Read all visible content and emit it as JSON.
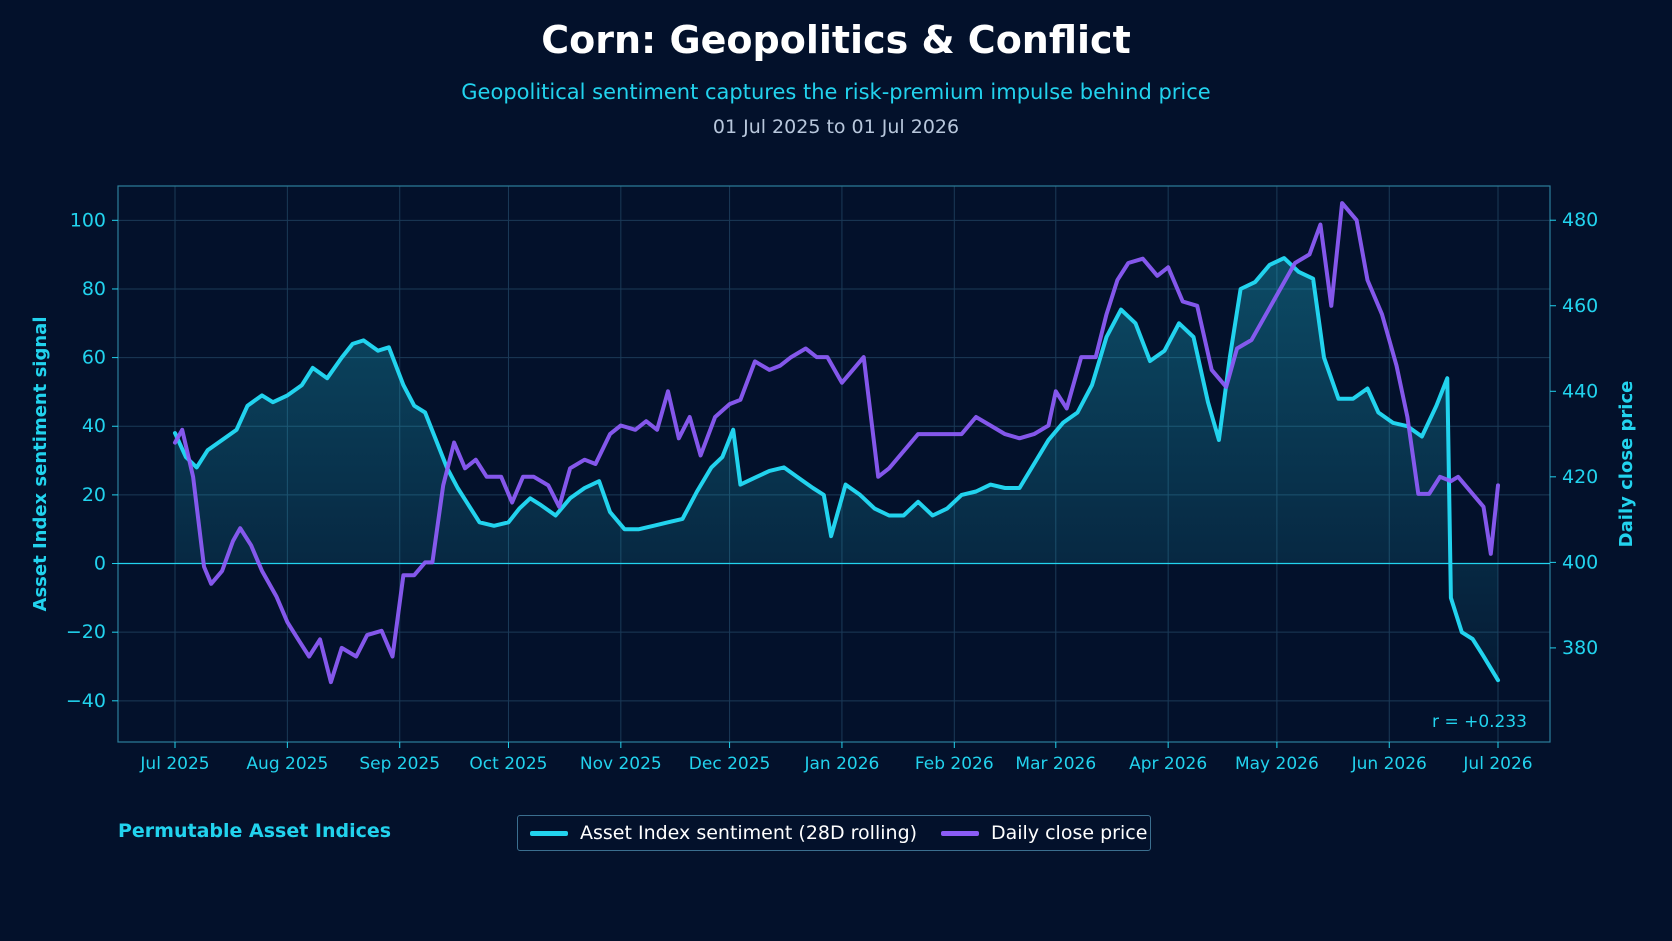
{
  "title": "Corn: Geopolitics & Conflict",
  "subtitle": "Geopolitical sentiment captures the risk-premium impulse behind price",
  "date_range": "01 Jul 2025 to 01 Jul 2026",
  "brand": "Permutable Asset Indices",
  "colors": {
    "background": "#03112b",
    "sentiment": "#22d3ee",
    "price": "#8b5cf6",
    "grid": "#1b3a57",
    "axis": "#22d3ee"
  },
  "chart_data": {
    "type": "line",
    "x_tick_labels": [
      "Jul 2025",
      "Aug 2025",
      "Sep 2025",
      "Oct 2025",
      "Nov 2025",
      "Dec 2025",
      "Jan 2026",
      "Feb 2026",
      "Mar 2026",
      "Apr 2026",
      "May 2026",
      "Jun 2026",
      "Jul 2026"
    ],
    "y_left": {
      "label": "Asset Index sentiment signal",
      "range": [
        -52,
        110
      ],
      "ticks": [
        -40,
        -20,
        0,
        20,
        40,
        60,
        80,
        100
      ],
      "tick_labels": [
        "−40",
        "−20",
        "0",
        "20",
        "40",
        "60",
        "80",
        "100"
      ]
    },
    "y_right": {
      "label": "Daily close price",
      "range": [
        358,
        488
      ],
      "ticks": [
        380,
        400,
        420,
        440,
        460,
        480
      ],
      "tick_labels": [
        "380",
        "400",
        "420",
        "440",
        "460",
        "480"
      ]
    },
    "grid": true,
    "legend_position": "bottom-center",
    "annotation": "r = +0.233",
    "series": [
      {
        "name": "Asset Index sentiment (28D rolling)",
        "axis": "left",
        "color": "#22d3ee",
        "points": [
          [
            "2025-07-01",
            38
          ],
          [
            "2025-07-04",
            31
          ],
          [
            "2025-07-07",
            28
          ],
          [
            "2025-07-10",
            33
          ],
          [
            "2025-07-14",
            36
          ],
          [
            "2025-07-18",
            39
          ],
          [
            "2025-07-21",
            46
          ],
          [
            "2025-07-25",
            49
          ],
          [
            "2025-07-28",
            47
          ],
          [
            "2025-08-01",
            49
          ],
          [
            "2025-08-05",
            52
          ],
          [
            "2025-08-08",
            57
          ],
          [
            "2025-08-12",
            54
          ],
          [
            "2025-08-16",
            60
          ],
          [
            "2025-08-19",
            64
          ],
          [
            "2025-08-22",
            65
          ],
          [
            "2025-08-26",
            62
          ],
          [
            "2025-08-29",
            63
          ],
          [
            "2025-09-02",
            52
          ],
          [
            "2025-09-05",
            46
          ],
          [
            "2025-09-08",
            44
          ],
          [
            "2025-09-11",
            36
          ],
          [
            "2025-09-14",
            28
          ],
          [
            "2025-09-17",
            22
          ],
          [
            "2025-09-20",
            17
          ],
          [
            "2025-09-23",
            12
          ],
          [
            "2025-09-27",
            11
          ],
          [
            "2025-10-01",
            12
          ],
          [
            "2025-10-04",
            16
          ],
          [
            "2025-10-07",
            19
          ],
          [
            "2025-10-10",
            17
          ],
          [
            "2025-10-14",
            14
          ],
          [
            "2025-10-18",
            19
          ],
          [
            "2025-10-22",
            22
          ],
          [
            "2025-10-26",
            24
          ],
          [
            "2025-10-29",
            15
          ],
          [
            "2025-11-02",
            10
          ],
          [
            "2025-11-06",
            10
          ],
          [
            "2025-11-10",
            11
          ],
          [
            "2025-11-14",
            12
          ],
          [
            "2025-11-18",
            13
          ],
          [
            "2025-11-22",
            21
          ],
          [
            "2025-11-26",
            28
          ],
          [
            "2025-11-29",
            31
          ],
          [
            "2025-12-02",
            39
          ],
          [
            "2025-12-04",
            23
          ],
          [
            "2025-12-08",
            25
          ],
          [
            "2025-12-12",
            27
          ],
          [
            "2025-12-16",
            28
          ],
          [
            "2025-12-20",
            25
          ],
          [
            "2025-12-24",
            22
          ],
          [
            "2025-12-27",
            20
          ],
          [
            "2025-12-29",
            8
          ],
          [
            "2026-01-02",
            23
          ],
          [
            "2026-01-06",
            20
          ],
          [
            "2026-01-10",
            16
          ],
          [
            "2026-01-14",
            14
          ],
          [
            "2026-01-18",
            14
          ],
          [
            "2026-01-22",
            18
          ],
          [
            "2026-01-26",
            14
          ],
          [
            "2026-01-30",
            16
          ],
          [
            "2026-02-03",
            20
          ],
          [
            "2026-02-07",
            21
          ],
          [
            "2026-02-11",
            23
          ],
          [
            "2026-02-15",
            22
          ],
          [
            "2026-02-19",
            22
          ],
          [
            "2026-02-23",
            29
          ],
          [
            "2026-02-27",
            36
          ],
          [
            "2026-03-03",
            41
          ],
          [
            "2026-03-07",
            44
          ],
          [
            "2026-03-11",
            52
          ],
          [
            "2026-03-15",
            66
          ],
          [
            "2026-03-19",
            74
          ],
          [
            "2026-03-23",
            70
          ],
          [
            "2026-03-27",
            59
          ],
          [
            "2026-03-31",
            62
          ],
          [
            "2026-04-04",
            70
          ],
          [
            "2026-04-08",
            66
          ],
          [
            "2026-04-12",
            47
          ],
          [
            "2026-04-15",
            36
          ],
          [
            "2026-04-18",
            60
          ],
          [
            "2026-04-21",
            80
          ],
          [
            "2026-04-25",
            82
          ],
          [
            "2026-04-29",
            87
          ],
          [
            "2026-05-03",
            89
          ],
          [
            "2026-05-07",
            85
          ],
          [
            "2026-05-11",
            83
          ],
          [
            "2026-05-14",
            60
          ],
          [
            "2026-05-18",
            48
          ],
          [
            "2026-05-22",
            48
          ],
          [
            "2026-05-26",
            51
          ],
          [
            "2026-05-29",
            44
          ],
          [
            "2026-06-02",
            41
          ],
          [
            "2026-06-06",
            40
          ],
          [
            "2026-06-10",
            37
          ],
          [
            "2026-06-14",
            46
          ],
          [
            "2026-06-17",
            54
          ],
          [
            "2026-06-18",
            -10
          ],
          [
            "2026-06-21",
            -20
          ],
          [
            "2026-06-24",
            -22
          ],
          [
            "2026-06-27",
            -27
          ],
          [
            "2026-07-01",
            -34
          ]
        ]
      },
      {
        "name": "Daily close price",
        "axis": "right",
        "color": "#8b5cf6",
        "points": [
          [
            "2025-07-01",
            428
          ],
          [
            "2025-07-03",
            431
          ],
          [
            "2025-07-06",
            420
          ],
          [
            "2025-07-09",
            399
          ],
          [
            "2025-07-11",
            395
          ],
          [
            "2025-07-14",
            398
          ],
          [
            "2025-07-17",
            405
          ],
          [
            "2025-07-19",
            408
          ],
          [
            "2025-07-22",
            404
          ],
          [
            "2025-07-25",
            398
          ],
          [
            "2025-07-29",
            392
          ],
          [
            "2025-08-01",
            386
          ],
          [
            "2025-08-04",
            382
          ],
          [
            "2025-08-07",
            378
          ],
          [
            "2025-08-10",
            382
          ],
          [
            "2025-08-13",
            372
          ],
          [
            "2025-08-16",
            380
          ],
          [
            "2025-08-20",
            378
          ],
          [
            "2025-08-23",
            383
          ],
          [
            "2025-08-27",
            384
          ],
          [
            "2025-08-30",
            378
          ],
          [
            "2025-09-02",
            397
          ],
          [
            "2025-09-05",
            397
          ],
          [
            "2025-09-08",
            400
          ],
          [
            "2025-09-10",
            400
          ],
          [
            "2025-09-13",
            418
          ],
          [
            "2025-09-16",
            428
          ],
          [
            "2025-09-19",
            422
          ],
          [
            "2025-09-22",
            424
          ],
          [
            "2025-09-25",
            420
          ],
          [
            "2025-09-29",
            420
          ],
          [
            "2025-10-02",
            414
          ],
          [
            "2025-10-05",
            420
          ],
          [
            "2025-10-08",
            420
          ],
          [
            "2025-10-12",
            418
          ],
          [
            "2025-10-15",
            413
          ],
          [
            "2025-10-18",
            422
          ],
          [
            "2025-10-22",
            424
          ],
          [
            "2025-10-25",
            423
          ],
          [
            "2025-10-29",
            430
          ],
          [
            "2025-11-01",
            432
          ],
          [
            "2025-11-05",
            431
          ],
          [
            "2025-11-08",
            433
          ],
          [
            "2025-11-11",
            431
          ],
          [
            "2025-11-14",
            440
          ],
          [
            "2025-11-17",
            429
          ],
          [
            "2025-11-20",
            434
          ],
          [
            "2025-11-23",
            425
          ],
          [
            "2025-11-27",
            434
          ],
          [
            "2025-12-01",
            437
          ],
          [
            "2025-12-04",
            438
          ],
          [
            "2025-12-08",
            447
          ],
          [
            "2025-12-12",
            445
          ],
          [
            "2025-12-15",
            446
          ],
          [
            "2025-12-18",
            448
          ],
          [
            "2025-12-22",
            450
          ],
          [
            "2025-12-25",
            448
          ],
          [
            "2025-12-28",
            448
          ],
          [
            "2026-01-01",
            442
          ],
          [
            "2026-01-04",
            445
          ],
          [
            "2026-01-07",
            448
          ],
          [
            "2026-01-11",
            420
          ],
          [
            "2026-01-14",
            422
          ],
          [
            "2026-01-18",
            426
          ],
          [
            "2026-01-22",
            430
          ],
          [
            "2026-01-26",
            430
          ],
          [
            "2026-01-30",
            430
          ],
          [
            "2026-02-03",
            430
          ],
          [
            "2026-02-07",
            434
          ],
          [
            "2026-02-11",
            432
          ],
          [
            "2026-02-15",
            430
          ],
          [
            "2026-02-19",
            429
          ],
          [
            "2026-02-23",
            430
          ],
          [
            "2026-02-27",
            432
          ],
          [
            "2026-03-01",
            440
          ],
          [
            "2026-03-04",
            436
          ],
          [
            "2026-03-08",
            448
          ],
          [
            "2026-03-12",
            448
          ],
          [
            "2026-03-15",
            458
          ],
          [
            "2026-03-18",
            466
          ],
          [
            "2026-03-21",
            470
          ],
          [
            "2026-03-25",
            471
          ],
          [
            "2026-03-29",
            467
          ],
          [
            "2026-04-01",
            469
          ],
          [
            "2026-04-05",
            461
          ],
          [
            "2026-04-09",
            460
          ],
          [
            "2026-04-13",
            445
          ],
          [
            "2026-04-17",
            441
          ],
          [
            "2026-04-20",
            450
          ],
          [
            "2026-04-24",
            452
          ],
          [
            "2026-04-28",
            458
          ],
          [
            "2026-05-02",
            464
          ],
          [
            "2026-05-06",
            470
          ],
          [
            "2026-05-10",
            472
          ],
          [
            "2026-05-13",
            479
          ],
          [
            "2026-05-16",
            460
          ],
          [
            "2026-05-19",
            484
          ],
          [
            "2026-05-23",
            480
          ],
          [
            "2026-05-26",
            466
          ],
          [
            "2026-05-30",
            458
          ],
          [
            "2026-06-03",
            446
          ],
          [
            "2026-06-06",
            434
          ],
          [
            "2026-06-09",
            416
          ],
          [
            "2026-06-12",
            416
          ],
          [
            "2026-06-15",
            420
          ],
          [
            "2026-06-18",
            419
          ],
          [
            "2026-06-20",
            420
          ],
          [
            "2026-06-24",
            416
          ],
          [
            "2026-06-27",
            413
          ],
          [
            "2026-06-29",
            402
          ],
          [
            "2026-07-01",
            418
          ]
        ]
      }
    ]
  },
  "legend": {
    "sentiment_label": "Asset Index sentiment (28D rolling)",
    "price_label": "Daily close price"
  }
}
